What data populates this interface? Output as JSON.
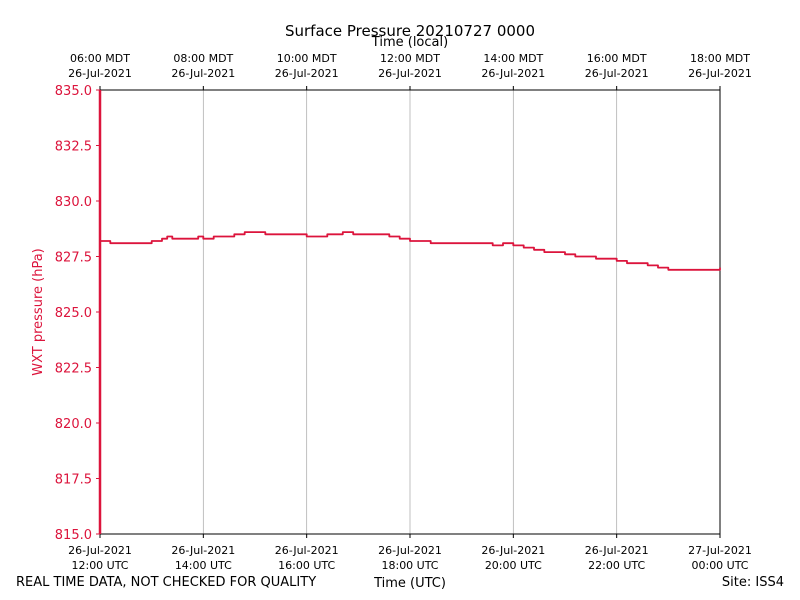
{
  "chart_data": {
    "type": "line",
    "title": "Surface Pressure 20210727 0000",
    "xlabel": "Time (UTC)",
    "xlabel_top": "Time (local)",
    "ylabel": "WXT pressure (hPa)",
    "ylim": [
      815.0,
      835.0
    ],
    "xlim": [
      "2021-07-26T12:00Z",
      "2021-07-27T00:00Z"
    ],
    "grid": "vertical",
    "yticks": [
      "815.0",
      "817.5",
      "820.0",
      "822.5",
      "825.0",
      "827.5",
      "830.0",
      "832.5",
      "835.0"
    ],
    "xticks_bottom": [
      [
        "26-Jul-2021",
        "12:00 UTC"
      ],
      [
        "26-Jul-2021",
        "14:00 UTC"
      ],
      [
        "26-Jul-2021",
        "16:00 UTC"
      ],
      [
        "26-Jul-2021",
        "18:00 UTC"
      ],
      [
        "26-Jul-2021",
        "20:00 UTC"
      ],
      [
        "26-Jul-2021",
        "22:00 UTC"
      ],
      [
        "27-Jul-2021",
        "00:00 UTC"
      ]
    ],
    "xticks_top": [
      [
        "06:00 MDT",
        "26-Jul-2021"
      ],
      [
        "08:00 MDT",
        "26-Jul-2021"
      ],
      [
        "10:00 MDT",
        "26-Jul-2021"
      ],
      [
        "12:00 MDT",
        "26-Jul-2021"
      ],
      [
        "14:00 MDT",
        "26-Jul-2021"
      ],
      [
        "16:00 MDT",
        "26-Jul-2021"
      ],
      [
        "18:00 MDT",
        "26-Jul-2021"
      ]
    ],
    "series": [
      {
        "color": "#dc143c",
        "x_hours_utc": [
          12.0,
          12.1,
          12.2,
          12.35,
          12.5,
          12.7,
          12.85,
          13.0,
          13.1,
          13.2,
          13.3,
          13.4,
          13.5,
          13.6,
          13.75,
          13.9,
          14.0,
          14.1,
          14.2,
          14.4,
          14.6,
          14.8,
          15.0,
          15.2,
          15.4,
          15.5,
          15.7,
          16.0,
          16.2,
          16.4,
          16.5,
          16.7,
          16.9,
          17.0,
          17.2,
          17.4,
          17.6,
          17.8,
          17.9,
          18.0,
          18.2,
          18.4,
          18.6,
          18.8,
          19.0,
          19.2,
          19.4,
          19.6,
          19.8,
          20.0,
          20.1,
          20.2,
          20.4,
          20.6,
          20.8,
          21.0,
          21.2,
          21.4,
          21.6,
          21.8,
          22.0,
          22.2,
          22.4,
          22.6,
          22.8,
          23.0,
          23.2,
          23.4,
          23.6,
          23.8,
          24.0
        ],
        "y": [
          828.2,
          828.2,
          828.1,
          828.1,
          828.1,
          828.1,
          828.1,
          828.2,
          828.2,
          828.3,
          828.4,
          828.3,
          828.3,
          828.3,
          828.3,
          828.4,
          828.3,
          828.3,
          828.4,
          828.4,
          828.5,
          828.6,
          828.6,
          828.5,
          828.5,
          828.5,
          828.5,
          828.4,
          828.4,
          828.5,
          828.5,
          828.6,
          828.5,
          828.5,
          828.5,
          828.5,
          828.4,
          828.3,
          828.3,
          828.2,
          828.2,
          828.1,
          828.1,
          828.1,
          828.1,
          828.1,
          828.1,
          828.0,
          828.1,
          828.0,
          828.0,
          827.9,
          827.8,
          827.7,
          827.7,
          827.6,
          827.5,
          827.5,
          827.4,
          827.4,
          827.3,
          827.2,
          827.2,
          827.1,
          827.0,
          826.9,
          826.9,
          826.9,
          826.9,
          826.9,
          827.0
        ]
      }
    ]
  },
  "footer": {
    "quality_note": "REAL TIME DATA, NOT CHECKED FOR QUALITY",
    "site": "Site: ISS4"
  }
}
